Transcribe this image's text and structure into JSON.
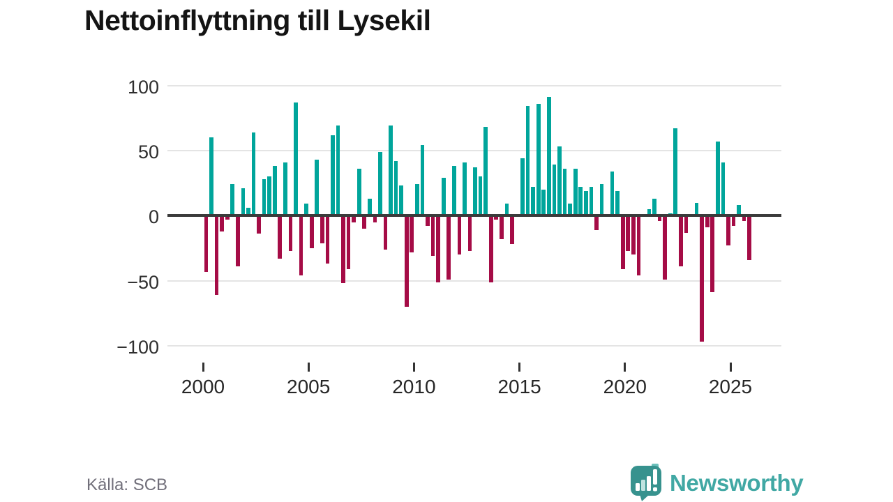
{
  "title": "Nettoinflyttning till Lysekil",
  "source": "Källa: SCB",
  "brand": {
    "name": "Newsworthy"
  },
  "colors": {
    "positive": "#00a59b",
    "negative": "#a50c46",
    "grid": "#e4e4e4",
    "axis": "#3b3b3b",
    "brand_text": "#41a8a4",
    "logo_bubble": "#37928e",
    "logo_light": "#6cc0bb"
  },
  "y_axis": {
    "ticks": [
      {
        "label": "100",
        "value": 100
      },
      {
        "label": "50",
        "value": 50
      },
      {
        "label": "0",
        "value": 0
      },
      {
        "label": "−50",
        "value": -50
      },
      {
        "label": "−100",
        "value": -100
      }
    ]
  },
  "x_axis": {
    "ticks": [
      {
        "label": "2000",
        "year": 2000
      },
      {
        "label": "2005",
        "year": 2005
      },
      {
        "label": "2010",
        "year": 2010
      },
      {
        "label": "2015",
        "year": 2015
      },
      {
        "label": "2020",
        "year": 2020
      },
      {
        "label": "2025",
        "year": 2025
      }
    ]
  },
  "chart_data": {
    "type": "bar",
    "title": "Nettoinflyttning till Lysekil",
    "frequency": "quarterly",
    "start_year": 2000,
    "ylim": [
      -100,
      100
    ],
    "grid": true,
    "positive_color": "#00a59b",
    "negative_color": "#a50c46",
    "values": [
      -43,
      60,
      -61,
      -12,
      -3,
      24,
      -39,
      21,
      6,
      64,
      -14,
      28,
      30,
      38,
      -33,
      41,
      -27,
      87,
      -46,
      9,
      -25,
      43,
      -21,
      -37,
      62,
      69,
      -52,
      -41,
      -5,
      36,
      -10,
      13,
      -5,
      49,
      -26,
      69,
      42,
      23,
      -70,
      -28,
      24,
      54,
      -8,
      -31,
      -51,
      29,
      -49,
      38,
      -30,
      41,
      -27,
      37,
      30,
      68,
      -51,
      -3,
      -18,
      9,
      -22,
      0,
      44,
      84,
      22,
      86,
      20,
      91,
      39,
      53,
      36,
      9,
      36,
      22,
      19,
      22,
      -11,
      24,
      0,
      34,
      19,
      -41,
      -27,
      -30,
      -46,
      0,
      5,
      13,
      -4,
      -49,
      2,
      67,
      -39,
      -13,
      0,
      10,
      -97,
      -9,
      -59,
      57,
      41,
      -23,
      -8,
      8,
      -4,
      -34
    ]
  }
}
